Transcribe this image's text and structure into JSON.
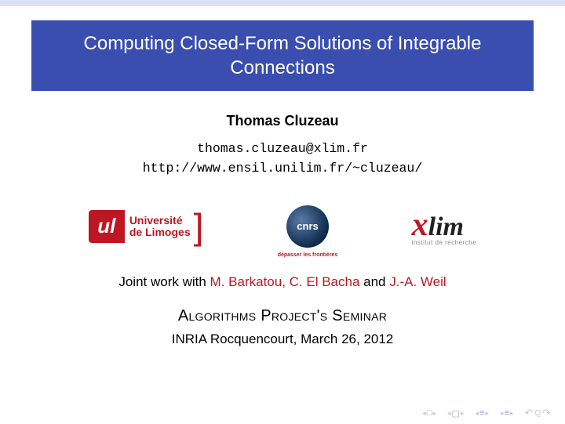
{
  "title": "Computing Closed-Form Solutions of Integrable Connections",
  "author": "Thomas Cluzeau",
  "email": "thomas.cluzeau@xlim.fr",
  "url": "http://www.ensil.unilim.fr/~cluzeau/",
  "logos": {
    "unilim": {
      "mark": "ul",
      "line1": "Université",
      "line2": "de Limoges",
      "color": "#be1622"
    },
    "cnrs": {
      "label": "cnrs",
      "tagline": "dépasser les frontières"
    },
    "xlim": {
      "label": "xlim",
      "tagline": "institut de recherche",
      "x_color": "#be1622"
    }
  },
  "joint": {
    "prefix": "Joint work with ",
    "names1": "M. Barkatou, C. El Bacha",
    "mid": " and ",
    "names2": "J.-A. Weil"
  },
  "venue": "Algorithms Project's Seminar",
  "date": "INRIA Rocquencourt, March 26, 2012",
  "colors": {
    "title_bg": "#3a4eb0",
    "title_fg": "#ffffff",
    "topbar": "#dce2f5",
    "highlight": "#be1622",
    "background": "#ffffff"
  },
  "nav": {
    "frame": "□",
    "section": "▢",
    "slide_back": "≡",
    "slide_fwd": "≡",
    "undo": "↶",
    "redo": "↷"
  }
}
